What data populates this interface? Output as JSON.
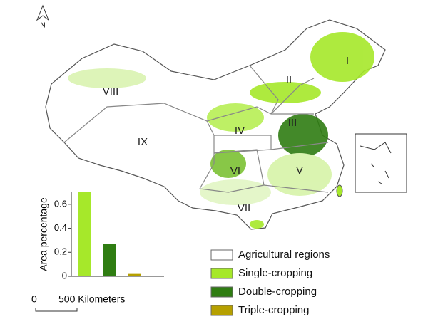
{
  "north_arrow": {
    "label": "N"
  },
  "regions": [
    {
      "label": "I"
    },
    {
      "label": "II"
    },
    {
      "label": "III"
    },
    {
      "label": "IV"
    },
    {
      "label": "V"
    },
    {
      "label": "VI"
    },
    {
      "label": "VII"
    },
    {
      "label": "VIII"
    },
    {
      "label": "IX"
    }
  ],
  "legend": [
    {
      "label": "Agricultural regions",
      "color": "#ffffff"
    },
    {
      "label": "Single-cropping",
      "color": "#a6e82a"
    },
    {
      "label": "Double-cropping",
      "color": "#2f7d12"
    },
    {
      "label": "Triple-cropping",
      "color": "#b6a000"
    }
  ],
  "scale_bar": {
    "start": "0",
    "end": "500 Kilometers"
  },
  "chart_data": {
    "type": "bar",
    "ylabel": "Area percentage",
    "categories": [
      null,
      null,
      null
    ],
    "series": [
      {
        "values": [
          0.7,
          0.27,
          0.02
        ],
        "colors": [
          "#a6e82a",
          "#2f7d12",
          "#b6a000"
        ]
      }
    ],
    "ylim": [
      0,
      0.7
    ],
    "yticks": [
      0,
      0.2,
      0.4,
      0.6
    ]
  }
}
